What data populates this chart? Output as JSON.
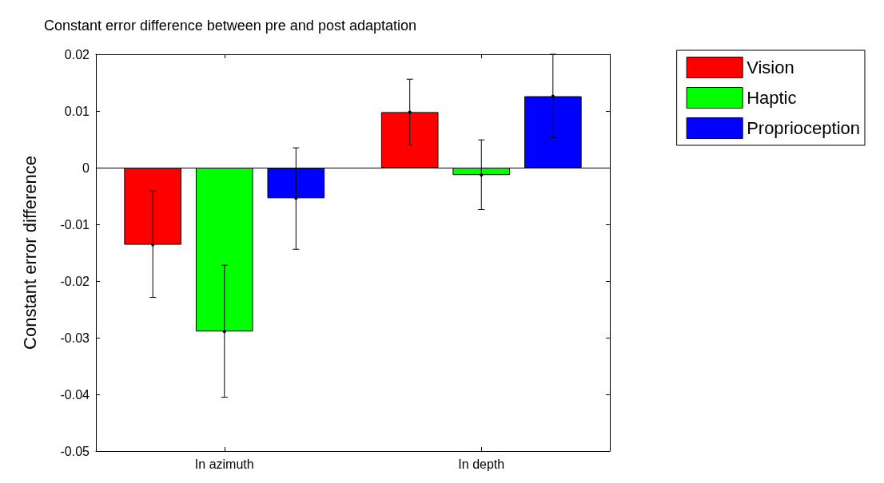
{
  "chart_data": {
    "type": "bar",
    "title": "Constant error difference between pre and post adaptation",
    "ylabel": "Constant error difference",
    "categories": [
      "In azimuth",
      "In depth"
    ],
    "series": [
      {
        "name": "Vision",
        "color": "#ff0000",
        "values": [
          -0.0136,
          0.0098
        ],
        "errors": [
          [
            -0.0229,
            -0.0041
          ],
          [
            0.004,
            0.0156
          ]
        ]
      },
      {
        "name": "Haptic",
        "color": "#00ff00",
        "values": [
          -0.0289,
          -0.0013
        ],
        "errors": [
          [
            -0.0405,
            -0.0172
          ],
          [
            -0.0074,
            0.0049
          ]
        ]
      },
      {
        "name": "Proprioception",
        "color": "#0000ff",
        "values": [
          -0.0054,
          0.0126
        ],
        "errors": [
          [
            -0.0144,
            0.0035
          ],
          [
            0.0053,
            0.02
          ]
        ]
      }
    ],
    "ylim": [
      -0.05,
      0.02
    ],
    "yticks": [
      -0.05,
      -0.04,
      -0.03,
      -0.02,
      -0.01,
      0,
      0.01,
      0.02
    ],
    "ref_lines": [
      {
        "axis": "y",
        "value": 0,
        "color": "#000000",
        "line_style": "solid"
      }
    ],
    "grid": false,
    "legend": "top right"
  }
}
